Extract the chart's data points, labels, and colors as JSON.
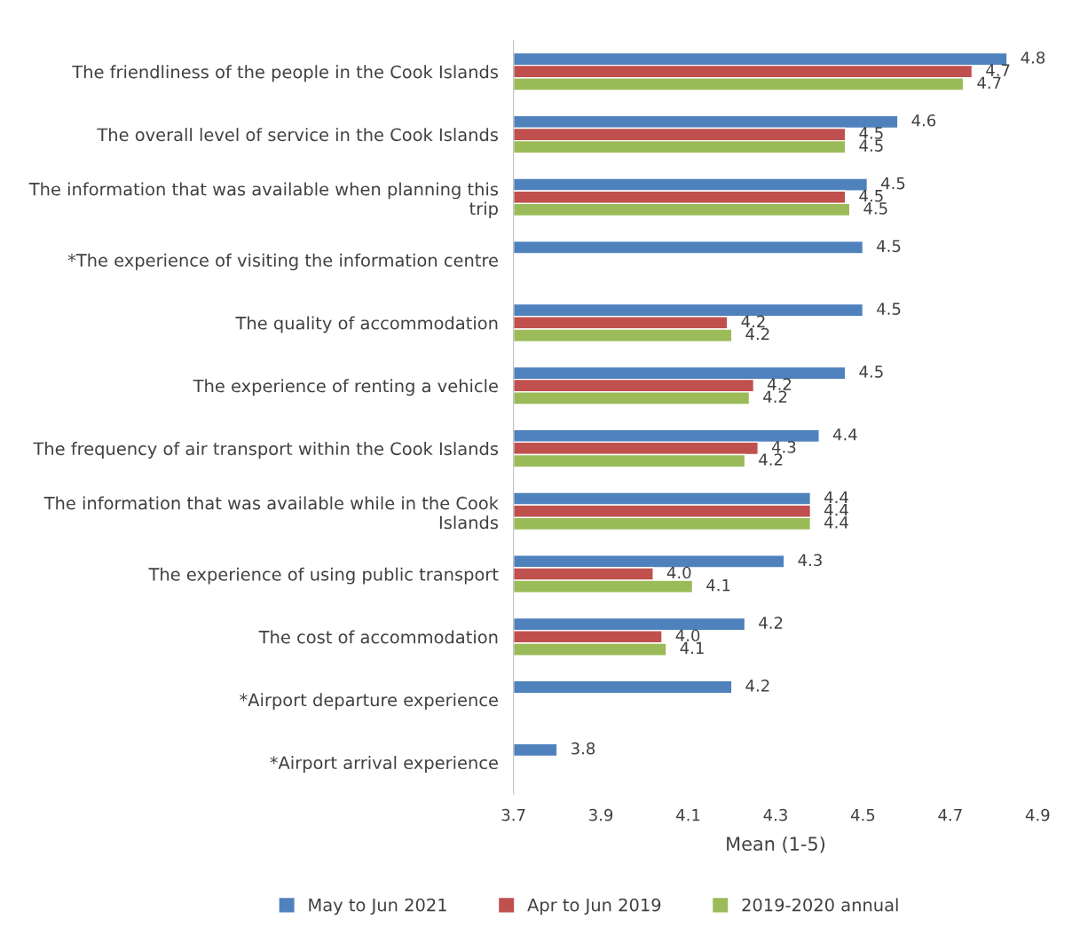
{
  "chart_data": {
    "type": "bar",
    "orientation": "horizontal",
    "xlabel": "Mean (1-5)",
    "categories": [
      "The friendliness of the people in the Cook Islands",
      "The overall level of service in the Cook Islands",
      "The information that was available when planning this trip",
      "*The experience of visiting the information centre",
      "The quality of accommodation",
      "The experience of renting a vehicle",
      "The frequency of air transport within the Cook Islands",
      "The information that was available while in the Cook Islands",
      "The experience of using public transport",
      "The cost of accommodation",
      "*Airport departure experience",
      "*Airport arrival experience"
    ],
    "series": [
      {
        "name": "May to Jun 2021",
        "color": "#4f81bd",
        "values": [
          4.83,
          4.58,
          4.51,
          4.5,
          4.5,
          4.46,
          4.4,
          4.38,
          4.32,
          4.23,
          4.2,
          3.8
        ],
        "value_labels": [
          "4.8",
          "4.6",
          "4.5",
          "4.5",
          "4.5",
          "4.5",
          "4.4",
          "4.4",
          "4.3",
          "4.2",
          "4.2",
          "3.8"
        ]
      },
      {
        "name": "Apr to Jun 2019",
        "color": "#c0504d",
        "values": [
          4.75,
          4.46,
          4.46,
          null,
          4.19,
          4.25,
          4.26,
          4.38,
          4.02,
          4.04,
          null,
          null
        ],
        "value_labels": [
          "4.7",
          "4.5",
          "4.5",
          null,
          "4.2",
          "4.2",
          "4.3",
          "4.4",
          "4.0",
          "4.0",
          null,
          null
        ]
      },
      {
        "name": "2019-2020 annual",
        "color": "#9bbb59",
        "values": [
          4.73,
          4.46,
          4.47,
          null,
          4.2,
          4.24,
          4.23,
          4.38,
          4.11,
          4.05,
          null,
          null
        ],
        "value_labels": [
          "4.7",
          "4.5",
          "4.5",
          null,
          "4.2",
          "4.2",
          "4.2",
          "4.4",
          "4.1",
          "4.1",
          null,
          null
        ]
      }
    ],
    "xlim": [
      3.7,
      4.9
    ],
    "xticks": [
      3.7,
      3.9,
      4.1,
      4.3,
      4.5,
      4.7,
      4.9
    ],
    "grid": false,
    "legend": "bottom"
  }
}
